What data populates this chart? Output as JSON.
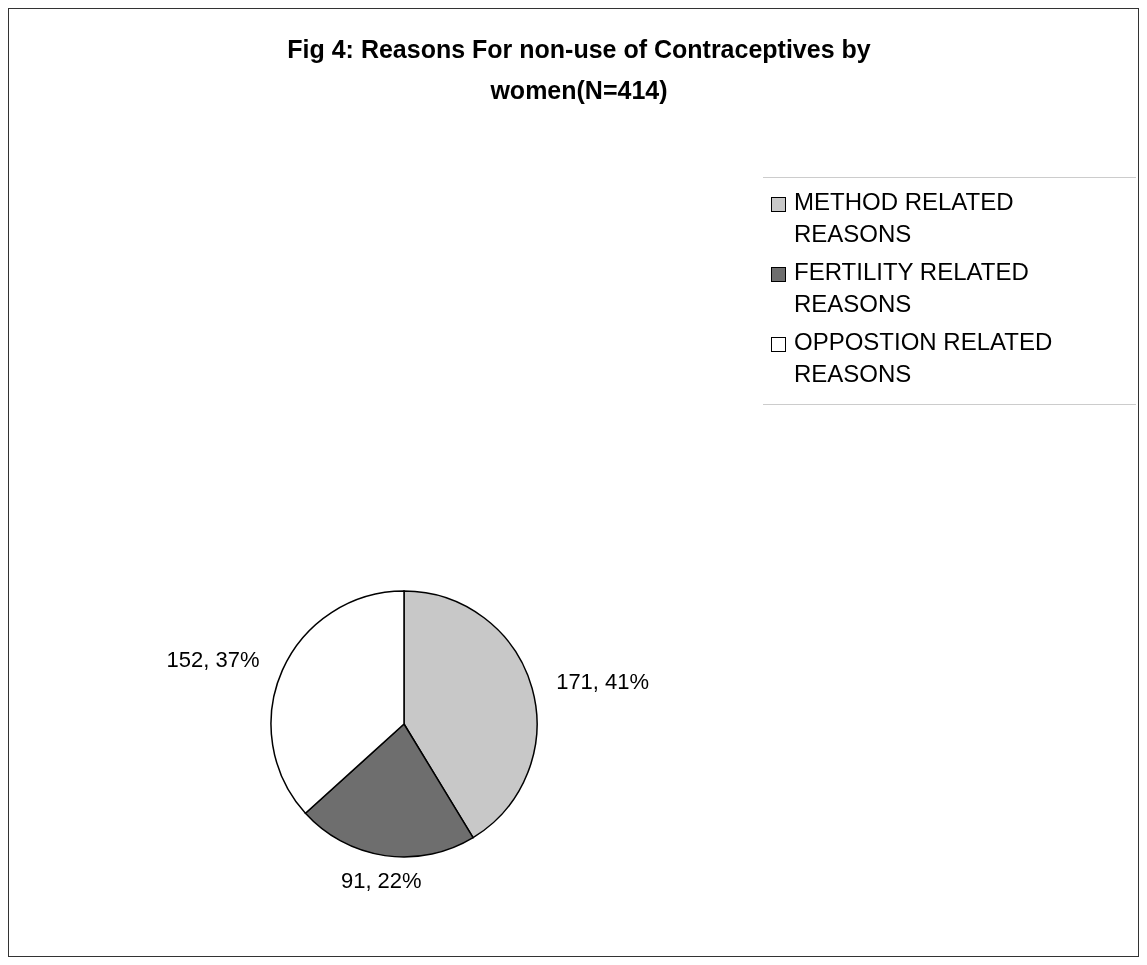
{
  "chart_data": {
    "type": "pie",
    "title": "Fig 4: Reasons For non-use of Contraceptives by women(N=414)",
    "categories": [
      "METHOD RELATED REASONS",
      "FERTILITY RELATED REASONS",
      "OPPOSTION RELATED REASONS"
    ],
    "values": [
      171,
      91,
      152
    ],
    "colors": [
      "#c8c8c8",
      "#6e6e6e",
      "#ffffff"
    ],
    "value_labels": [
      "171, 41%",
      "91, 22%",
      "152, 37%"
    ],
    "legend": "top right"
  }
}
